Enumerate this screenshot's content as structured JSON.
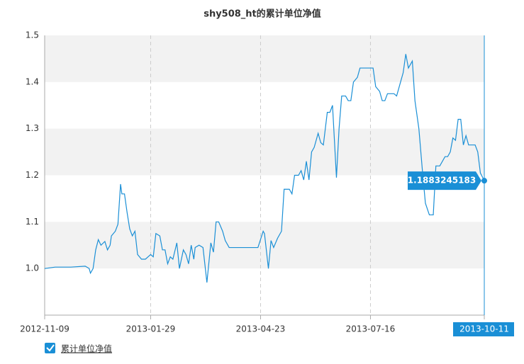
{
  "chart_data": {
    "type": "line",
    "title": "shy508_ht的累计单位净值",
    "x": [
      "2012-11-09",
      "2012-11-17",
      "2012-11-29",
      "2012-12-10",
      "2012-12-13",
      "2012-12-14",
      "2012-12-16",
      "2012-12-18",
      "2012-12-20",
      "2012-12-22",
      "2012-12-25",
      "2012-12-27",
      "2012-12-29",
      "2012-12-30",
      "2013-01-02",
      "2013-01-04",
      "2013-01-06",
      "2013-01-07",
      "2013-01-09",
      "2013-01-11",
      "2013-01-13",
      "2013-01-15",
      "2013-01-17",
      "2013-01-19",
      "2013-01-22",
      "2013-01-25",
      "2013-01-27",
      "2013-01-29",
      "2013-01-31",
      "2013-02-02",
      "2013-02-05",
      "2013-02-07",
      "2013-02-09",
      "2013-02-11",
      "2013-02-13",
      "2013-02-15",
      "2013-02-18",
      "2013-02-20",
      "2013-02-23",
      "2013-02-25",
      "2013-02-27",
      "2013-03-01",
      "2013-03-03",
      "2013-03-04",
      "2013-03-07",
      "2013-03-10",
      "2013-03-13",
      "2013-03-16",
      "2013-03-18",
      "2013-03-20",
      "2013-03-22",
      "2013-03-25",
      "2013-03-27",
      "2013-03-30",
      "2013-04-07",
      "2013-04-15",
      "2013-04-21",
      "2013-04-25",
      "2013-04-26",
      "2013-04-29",
      "2013-05-01",
      "2013-05-03",
      "2013-05-06",
      "2013-05-09",
      "2013-05-11",
      "2013-05-15",
      "2013-05-17",
      "2013-05-19",
      "2013-05-22",
      "2013-05-24",
      "2013-05-26",
      "2013-05-28",
      "2013-05-30",
      "2013-06-01",
      "2013-06-03",
      "2013-06-06",
      "2013-06-08",
      "2013-06-10",
      "2013-06-13",
      "2013-06-15",
      "2013-06-17",
      "2013-06-20",
      "2013-06-22",
      "2013-06-24",
      "2013-06-27",
      "2013-06-29",
      "2013-07-01",
      "2013-07-03",
      "2013-07-06",
      "2013-07-08",
      "2013-07-18",
      "2013-07-20",
      "2013-07-23",
      "2013-07-25",
      "2013-07-27",
      "2013-07-29",
      "2013-08-03",
      "2013-08-05",
      "2013-08-08",
      "2013-08-10",
      "2013-08-12",
      "2013-08-14",
      "2013-08-17",
      "2013-08-19",
      "2013-08-22",
      "2013-08-25",
      "2013-08-27",
      "2013-08-30",
      "2013-09-02",
      "2013-09-04",
      "2013-09-07",
      "2013-09-11",
      "2013-09-13",
      "2013-09-15",
      "2013-09-17",
      "2013-09-19",
      "2013-09-21",
      "2013-09-23",
      "2013-09-25",
      "2013-09-27",
      "2013-09-29",
      "2013-10-04",
      "2013-10-06",
      "2013-10-08",
      "2013-10-11"
    ],
    "series": [
      {
        "name": "累计单位净值",
        "color": "#1a8fd6",
        "values": [
          1.0,
          1.003,
          1.003,
          1.005,
          1.0,
          0.99,
          1.0,
          1.04,
          1.062,
          1.05,
          1.058,
          1.04,
          1.05,
          1.07,
          1.08,
          1.095,
          1.181,
          1.16,
          1.16,
          1.12,
          1.085,
          1.07,
          1.08,
          1.03,
          1.02,
          1.02,
          1.025,
          1.03,
          1.025,
          1.075,
          1.07,
          1.04,
          1.04,
          1.01,
          1.025,
          1.02,
          1.055,
          1.0,
          1.04,
          1.03,
          1.01,
          1.05,
          1.02,
          1.045,
          1.05,
          1.045,
          0.97,
          1.055,
          1.035,
          1.1,
          1.1,
          1.08,
          1.06,
          1.045,
          1.045,
          1.045,
          1.045,
          1.08,
          1.075,
          1.0,
          1.06,
          1.045,
          1.065,
          1.08,
          1.17,
          1.17,
          1.16,
          1.2,
          1.2,
          1.21,
          1.19,
          1.23,
          1.19,
          1.25,
          1.26,
          1.29,
          1.27,
          1.265,
          1.335,
          1.335,
          1.35,
          1.195,
          1.3,
          1.37,
          1.37,
          1.36,
          1.36,
          1.4,
          1.41,
          1.43,
          1.43,
          1.39,
          1.38,
          1.36,
          1.36,
          1.375,
          1.375,
          1.37,
          1.4,
          1.42,
          1.46,
          1.43,
          1.445,
          1.36,
          1.3,
          1.2,
          1.14,
          1.115,
          1.115,
          1.22,
          1.22,
          1.24,
          1.24,
          1.25,
          1.28,
          1.275,
          1.32,
          1.32,
          1.265,
          1.285,
          1.265,
          1.265,
          1.25,
          1.205,
          1.1883245183
        ]
      }
    ],
    "xlim": [
      "2012-11-09",
      "2013-10-11"
    ],
    "xticks": [
      "2012-11-09",
      "2013-01-29",
      "2013-04-23",
      "2013-07-16",
      "2013-10-11"
    ],
    "ylim": [
      0.9,
      1.5
    ],
    "yticks": [
      {
        "value": 1.0,
        "label": "1.0"
      },
      1.1,
      1.2,
      1.3,
      1.4,
      1.5
    ],
    "grid": true
  }
}
